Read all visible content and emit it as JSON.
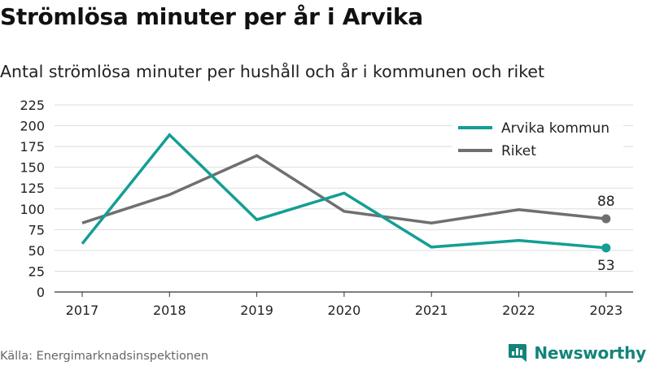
{
  "title": "Strömlösa minuter per år i Arvika",
  "subtitle": "Antal strömlösa minuter per hushåll och år i kommunen och riket",
  "source": "Källa: Energimarknadsinspektionen",
  "brand": "Newsworthy",
  "chart_data": {
    "type": "line",
    "x": [
      "2017",
      "2018",
      "2019",
      "2020",
      "2021",
      "2022",
      "2023"
    ],
    "ylim": [
      0,
      225
    ],
    "yticks": [
      0,
      25,
      50,
      75,
      100,
      125,
      150,
      175,
      200,
      225
    ],
    "grid": true,
    "legend_position": "top-right",
    "series": [
      {
        "name": "Arvika kommun",
        "color": "#139e94",
        "values": [
          58,
          189,
          87,
          119,
          54,
          62,
          53
        ],
        "end_label": "53"
      },
      {
        "name": "Riket",
        "color": "#6f6f73",
        "values": [
          83,
          117,
          164,
          97,
          83,
          99,
          88
        ],
        "end_label": "88"
      }
    ]
  }
}
